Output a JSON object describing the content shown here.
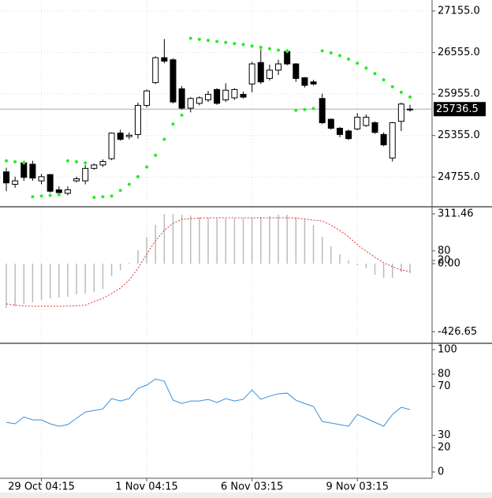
{
  "chart_data": [
    {
      "type": "candlestick",
      "categories": [
        null,
        null,
        null,
        null,
        "29 Oct 04:15",
        null,
        null,
        null,
        null,
        null,
        null,
        null,
        null,
        null,
        null,
        null,
        "1 Nov 04:15",
        null,
        null,
        null,
        null,
        null,
        null,
        null,
        null,
        null,
        null,
        null,
        "6 Nov 03:15",
        null,
        null,
        null,
        null,
        null,
        null,
        null,
        null,
        null,
        null,
        null,
        "9 Nov 03:15",
        null,
        null,
        null,
        null,
        null,
        null
      ],
      "open": [
        24830,
        24650,
        24960,
        24940,
        24700,
        24790,
        24570,
        24520,
        24700,
        24700,
        24880,
        24930,
        25020,
        25390,
        25340,
        25370,
        25790,
        26120,
        26480,
        26450,
        26030,
        25750,
        25820,
        25870,
        26020,
        25870,
        25900,
        25950,
        26100,
        26410,
        26180,
        26300,
        26570,
        26390,
        26190,
        26130,
        25890,
        25590,
        25460,
        25420,
        25450,
        25500,
        25540,
        25370,
        25030,
        25560,
        25730
      ],
      "high": [
        24890,
        24760,
        24990,
        24990,
        24800,
        24800,
        24620,
        24620,
        24760,
        24930,
        24950,
        25010,
        25400,
        25440,
        25400,
        25830,
        26020,
        26500,
        26750,
        26470,
        26070,
        25910,
        25920,
        26000,
        26040,
        26110,
        26040,
        25990,
        26420,
        26600,
        26380,
        26450,
        26600,
        26400,
        26200,
        26160,
        25960,
        25600,
        25480,
        25440,
        25680,
        25660,
        25560,
        25400,
        25550,
        25830,
        25800
      ],
      "low": [
        24550,
        24600,
        24700,
        24700,
        24650,
        24530,
        24500,
        24490,
        24680,
        24650,
        24860,
        24900,
        25000,
        25280,
        25300,
        25310,
        25760,
        26100,
        26400,
        25820,
        25730,
        25690,
        25790,
        25840,
        25800,
        25840,
        25870,
        25890,
        25980,
        26100,
        26150,
        26230,
        26370,
        26130,
        26050,
        26080,
        25520,
        25440,
        25330,
        25290,
        25430,
        25480,
        25380,
        25200,
        24980,
        25420,
        25700
      ],
      "close": [
        24670,
        24700,
        24750,
        24740,
        24760,
        24550,
        24530,
        24570,
        24730,
        24880,
        24930,
        24980,
        25390,
        25300,
        25360,
        25790,
        26000,
        26480,
        26430,
        25840,
        25750,
        25890,
        25900,
        25950,
        25820,
        26010,
        26020,
        25910,
        26390,
        26130,
        26300,
        26390,
        26390,
        26180,
        26080,
        26100,
        25540,
        25460,
        25370,
        25310,
        25620,
        25620,
        25400,
        25220,
        25540,
        25810,
        25736.5
      ],
      "sar": [
        24990,
        24975,
        24960,
        24470,
        24480,
        24490,
        24500,
        24990,
        24975,
        24960,
        24460,
        24470,
        24480,
        24560,
        24650,
        24760,
        24900,
        25070,
        25300,
        25520,
        25650,
        26760,
        26745,
        26730,
        26715,
        26700,
        26685,
        26670,
        26650,
        26630,
        26610,
        26590,
        26570,
        25720,
        25730,
        25745,
        26580,
        26550,
        26510,
        26460,
        26400,
        26330,
        26250,
        26160,
        26060,
        25980,
        25910
      ],
      "last_price": 25736.5,
      "up_color": "#ffffff",
      "down_color": "#000000",
      "sar_color": "#22ee22",
      "ylim": [
        24325,
        27291
      ],
      "yticks": [
        {
          "value": 27155,
          "label": "27155.0"
        },
        {
          "value": 26555,
          "label": "26555.0"
        },
        {
          "value": 25955,
          "label": "25955.0"
        },
        {
          "value": 25355,
          "label": "25355.0"
        },
        {
          "value": 24755,
          "label": "24755.0"
        }
      ],
      "grid": true
    },
    {
      "type": "macd",
      "values": [
        -277,
        -267,
        -252,
        -242,
        -227,
        -217,
        -213,
        -208,
        -193,
        -188,
        -178,
        -158,
        -79,
        -40,
        5,
        84,
        168,
        242,
        311,
        311,
        306,
        301,
        292,
        287,
        282,
        282,
        282,
        282,
        287,
        292,
        297,
        306,
        306,
        292,
        282,
        242,
        168,
        109,
        59,
        20,
        -10,
        -30,
        -69,
        -89,
        -89,
        -54,
        -59
      ],
      "signal": [
        -252,
        -260,
        -265,
        -267,
        -267,
        -267,
        -267,
        -266,
        -264,
        -260,
        -237,
        -217,
        -188,
        -153,
        -104,
        -30,
        59,
        143,
        208,
        252,
        277,
        282,
        285,
        287,
        287,
        287,
        287,
        287,
        287,
        287,
        287,
        287,
        287,
        285,
        280,
        272,
        267,
        242,
        208,
        168,
        119,
        79,
        40,
        5,
        -20,
        -40,
        -49
      ],
      "color": "#bbbbbb",
      "signal_color": "#e03030",
      "ylim": [
        -499,
        356
      ],
      "yticks": [
        311.46,
        80,
        20,
        {
          "value": 0,
          "label": "0.00"
        },
        -426.65
      ]
    },
    {
      "type": "rsi",
      "values": [
        40.6,
        39.4,
        45,
        42.6,
        42.6,
        39.4,
        37.4,
        38.7,
        43.9,
        49,
        50.3,
        51.6,
        60,
        58,
        60,
        68.4,
        71,
        76,
        74.2,
        58.7,
        56,
        58,
        58,
        59.4,
        56.8,
        60,
        58,
        59.4,
        67,
        59.4,
        62,
        63.9,
        64.5,
        58.7,
        56,
        53.5,
        41.3,
        40,
        38.7,
        37.4,
        47,
        43.9,
        40.6,
        37.4,
        47,
        52.9,
        51
      ],
      "color": "#3a8fd9",
      "ylim": [
        -4.5,
        105.2
      ],
      "yticks": [
        100,
        80,
        70,
        30,
        20,
        0
      ]
    }
  ]
}
